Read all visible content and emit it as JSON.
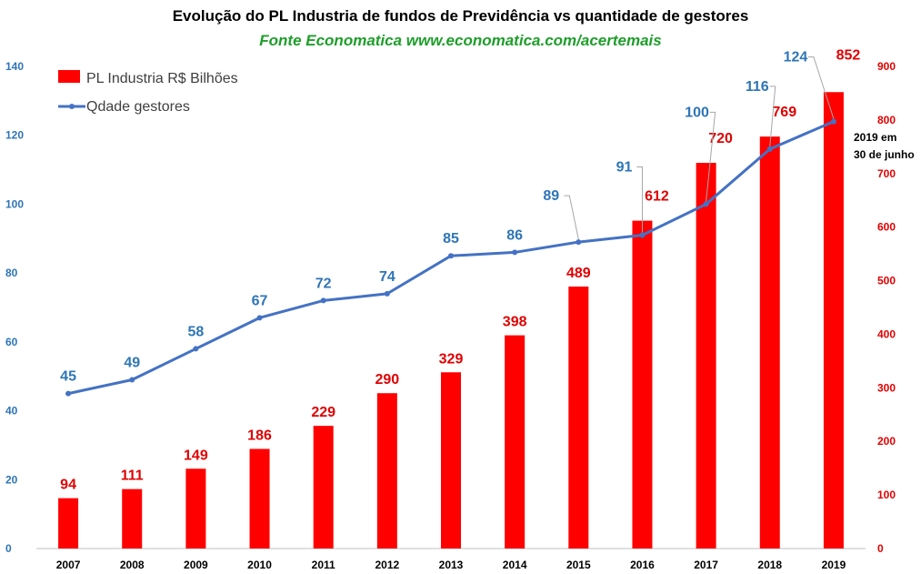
{
  "title": "Evolução do PL Industria de fundos de Previdência vs quantidade de gestores",
  "subtitle": "Fonte Economatica www.economatica.com/acertemais",
  "colors": {
    "bars": "#ff0000",
    "line": "#4472c4",
    "left_axis": "#2e75b6",
    "right_axis": "#e00000"
  },
  "chart_data": {
    "type": "bar",
    "categories": [
      "2007",
      "2008",
      "2009",
      "2010",
      "2011",
      "2012",
      "2013",
      "2014",
      "2015",
      "2016",
      "2017",
      "2018",
      "2019"
    ],
    "series": [
      {
        "name": "PL Industria R$ Bilhões",
        "type": "bar",
        "axis": "right",
        "values": [
          94,
          111,
          149,
          186,
          229,
          290,
          329,
          398,
          489,
          612,
          720,
          769,
          852
        ]
      },
      {
        "name": "Qdade gestores",
        "type": "line",
        "axis": "left",
        "values": [
          45,
          49,
          58,
          67,
          72,
          74,
          85,
          86,
          89,
          91,
          100,
          116,
          124
        ]
      }
    ],
    "y_left": {
      "range": [
        0,
        140
      ],
      "ticks": [
        0,
        20,
        40,
        60,
        80,
        100,
        120,
        140
      ]
    },
    "y_right": {
      "range": [
        0,
        900
      ],
      "ticks": [
        0,
        100,
        200,
        300,
        400,
        500,
        600,
        700,
        800,
        900
      ]
    },
    "legend_position": "top-left",
    "annotation": [
      "2019 em",
      "30 de junho"
    ]
  }
}
